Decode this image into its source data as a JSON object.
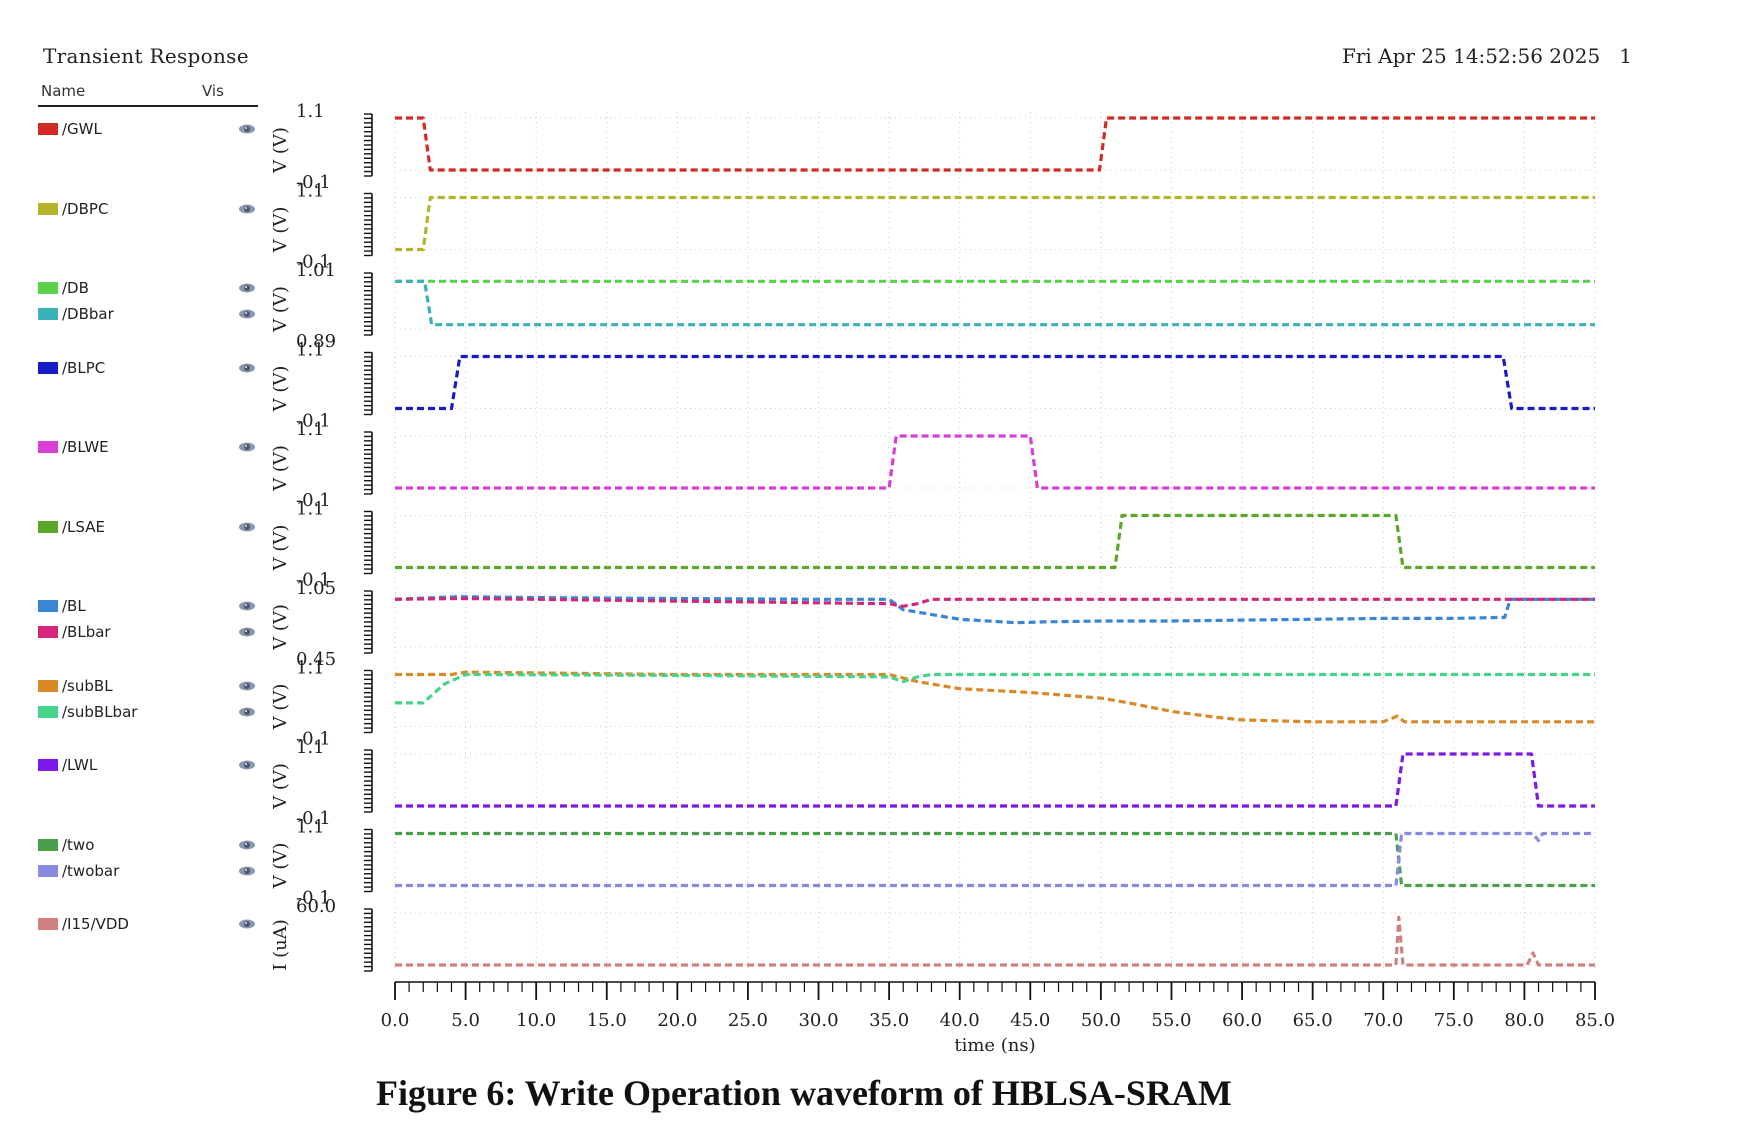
{
  "header": {
    "title": "Transient Response",
    "timestamp": "Fri Apr 25 14:52:56 2025",
    "page": "1"
  },
  "legend_columns": {
    "name": "Name",
    "vis": "Vis"
  },
  "caption": "Figure 6: Write Operation waveform of HBLSA-SRAM",
  "icons": {
    "visibility": "eye-icon"
  },
  "chart_data": {
    "type": "line",
    "xlabel": "time (ns)",
    "xlim": [
      0,
      85
    ],
    "xticks": [
      "0.0",
      "5.0",
      "10.0",
      "15.0",
      "20.0",
      "25.0",
      "30.0",
      "35.0",
      "40.0",
      "45.0",
      "50.0",
      "55.0",
      "60.0",
      "65.0",
      "70.0",
      "75.0",
      "80.0",
      "85.0"
    ],
    "xtick_values": [
      0,
      5,
      10,
      15,
      20,
      25,
      30,
      35,
      40,
      45,
      50,
      55,
      60,
      65,
      70,
      75,
      80,
      85
    ],
    "grid": true,
    "panels": [
      {
        "ylabel": "V (V)",
        "ytop": "1.1",
        "ybottom": "-0.1",
        "ylim": [
          0,
          1.1
        ],
        "series": [
          {
            "name": "/GWL",
            "color": "#d42a24",
            "x": [
              0,
              2.0,
              2.5,
              49.9,
              50.4,
              85
            ],
            "y": [
              1.1,
              1.1,
              0,
              0,
              1.1,
              1.1
            ]
          }
        ]
      },
      {
        "ylabel": "V (V)",
        "ytop": "1.1",
        "ybottom": "-0.1",
        "ylim": [
          0,
          1.1
        ],
        "series": [
          {
            "name": "/DBPC",
            "color": "#b4b42c",
            "x": [
              0,
              2.0,
              2.5,
              85
            ],
            "y": [
              0,
              0,
              1.1,
              1.1
            ]
          }
        ]
      },
      {
        "ylabel": "V (V)",
        "ytop": "1.01",
        "ybottom": "0.89",
        "ylim": [
          0.89,
          1.01
        ],
        "series": [
          {
            "name": "/DB",
            "color": "#59d44a",
            "x": [
              0,
              85
            ],
            "y": [
              1.0,
              1.0
            ]
          },
          {
            "name": "/DBbar",
            "color": "#3ab0b7",
            "x": [
              0,
              2.1,
              2.6,
              85
            ],
            "y": [
              1.0,
              1.0,
              0.9,
              0.9
            ]
          }
        ]
      },
      {
        "ylabel": "V (V)",
        "ytop": "1.1",
        "ybottom": "-0.1",
        "ylim": [
          0,
          1.1
        ],
        "series": [
          {
            "name": "/BLPC",
            "color": "#1a1ac8",
            "x": [
              0,
              4.0,
              4.6,
              78.5,
              79.1,
              85
            ],
            "y": [
              0,
              0,
              1.1,
              1.1,
              0,
              0
            ]
          }
        ]
      },
      {
        "ylabel": "V (V)",
        "ytop": "1.1",
        "ybottom": "-0.1",
        "ylim": [
          0,
          1.1
        ],
        "series": [
          {
            "name": "/BLWE",
            "color": "#d640d6",
            "x": [
              0,
              35.0,
              35.5,
              45.0,
              45.5,
              85
            ],
            "y": [
              0,
              0,
              1.1,
              1.1,
              0,
              0
            ]
          }
        ]
      },
      {
        "ylabel": "V (V)",
        "ytop": "1.1",
        "ybottom": "-0.1",
        "ylim": [
          0,
          1.1
        ],
        "series": [
          {
            "name": "/LSAE",
            "color": "#5ba62d",
            "x": [
              0,
              51.0,
              51.5,
              70.9,
              71.4,
              85
            ],
            "y": [
              0,
              0,
              1.1,
              1.1,
              0,
              0
            ]
          }
        ]
      },
      {
        "ylabel": "V (V)",
        "ytop": "1.05",
        "ybottom": "0.45",
        "ylim": [
          0.45,
          1.05
        ],
        "series": [
          {
            "name": "/BL",
            "color": "#3a86d6",
            "x": [
              0,
              4.5,
              10,
              20,
              30,
              35.0,
              36.0,
              40,
              44,
              46,
              50,
              55,
              60,
              65,
              70,
              75,
              78.0,
              78.6,
              79.0,
              85
            ],
            "y": [
              1.0,
              1.03,
              1.02,
              1.01,
              1.0,
              1.0,
              0.88,
              0.77,
              0.73,
              0.74,
              0.75,
              0.75,
              0.76,
              0.77,
              0.78,
              0.78,
              0.79,
              0.79,
              1.0,
              1.0
            ]
          },
          {
            "name": "/BLbar",
            "color": "#d4267a",
            "x": [
              0,
              4.5,
              10,
              20,
              30,
              35.0,
              36.0,
              37.0,
              38.0,
              50,
              60,
              70,
              78.0,
              78.6,
              85
            ],
            "y": [
              1.0,
              1.01,
              1.0,
              0.98,
              0.96,
              0.95,
              0.92,
              0.95,
              1.0,
              1.0,
              1.0,
              1.0,
              1.0,
              1.0,
              1.0
            ]
          }
        ]
      },
      {
        "ylabel": "V (V)",
        "ytop": "1.1",
        "ybottom": "-0.1",
        "ylim": [
          0,
          1.1
        ],
        "series": [
          {
            "name": "/subBL",
            "color": "#d88a28",
            "x": [
              0,
              4,
              5,
              20,
              35.0,
              37,
              40,
              45,
              50,
              52,
              55,
              58,
              60,
              65,
              70,
              71,
              71.5,
              72,
              85
            ],
            "y": [
              1.1,
              1.1,
              1.15,
              1.1,
              1.1,
              0.95,
              0.8,
              0.72,
              0.6,
              0.5,
              0.32,
              0.2,
              0.14,
              0.1,
              0.1,
              0.22,
              0.1,
              0.1,
              0.1
            ]
          },
          {
            "name": "/subBLbar",
            "color": "#44d48a",
            "x": [
              0,
              2.0,
              3.5,
              5,
              20,
              35.0,
              36.0,
              37.0,
              38.0,
              85
            ],
            "y": [
              0.5,
              0.5,
              0.9,
              1.1,
              1.08,
              1.05,
              0.95,
              1.05,
              1.1,
              1.1
            ]
          }
        ]
      },
      {
        "ylabel": "V (V)",
        "ytop": "1.1",
        "ybottom": "-0.1",
        "ylim": [
          0,
          1.1
        ],
        "series": [
          {
            "name": "/LWL",
            "color": "#7a1ae6",
            "x": [
              0,
              70.9,
              71.4,
              80.5,
              81.0,
              85
            ],
            "y": [
              0,
              0,
              1.1,
              1.1,
              0,
              0
            ]
          }
        ]
      },
      {
        "ylabel": "V (V)",
        "ytop": "1.1",
        "ybottom": "-0.1",
        "ylim": [
          0,
          1.1
        ],
        "series": [
          {
            "name": "/two",
            "color": "#4aa04a",
            "x": [
              0,
              70.9,
              71.3,
              85
            ],
            "y": [
              1.1,
              1.1,
              0,
              0
            ]
          },
          {
            "name": "/twobar",
            "color": "#8a8ae0",
            "x": [
              0,
              70.9,
              71.3,
              80.6,
              81.0,
              81.3,
              85
            ],
            "y": [
              0,
              0,
              1.1,
              1.1,
              0.95,
              1.1,
              1.1
            ]
          }
        ]
      },
      {
        "ylabel": "I (uA)",
        "ytop": "60.0",
        "ybottom": "",
        "ylim": [
          0,
          60
        ],
        "series": [
          {
            "name": "/I15/VDD",
            "color": "#d08080",
            "x": [
              0,
              70.9,
              71.1,
              71.4,
              71.8,
              80.2,
              80.6,
              81.0,
              85
            ],
            "y": [
              0,
              0,
              55,
              0,
              0,
              0,
              14,
              0,
              0
            ]
          }
        ]
      }
    ]
  }
}
